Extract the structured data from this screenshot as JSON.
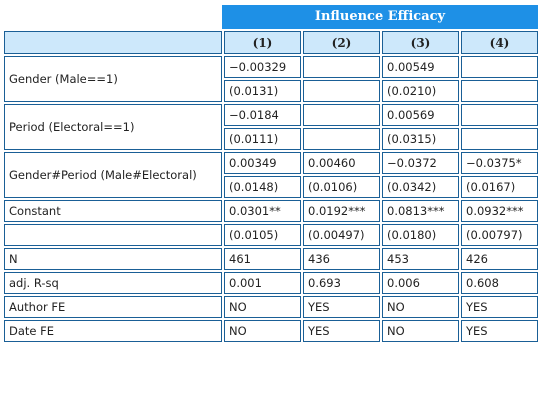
{
  "table": {
    "title": "Influence Efficacy",
    "columns": [
      "(1)",
      "(2)",
      "(3)",
      "(4)"
    ],
    "rows": [
      {
        "label": "Gender (Male==1)",
        "coef": [
          "−0.00329",
          "",
          "0.00549",
          ""
        ],
        "se": [
          "(0.0131)",
          "",
          "(0.0210)",
          ""
        ]
      },
      {
        "label": "Period (Electoral==1)",
        "coef": [
          "−0.0184",
          "",
          "0.00569",
          ""
        ],
        "se": [
          "(0.0111)",
          "",
          "(0.0315)",
          ""
        ]
      },
      {
        "label": "Gender#Period (Male#Electoral)",
        "coef": [
          "0.00349",
          "0.00460",
          "−0.0372",
          "−0.0375*"
        ],
        "se": [
          "(0.0148)",
          "(0.0106)",
          "(0.0342)",
          "(0.0167)"
        ]
      },
      {
        "label": "Constant",
        "coef": [
          "0.0301**",
          "0.0192***",
          "0.0813***",
          "0.0932***"
        ],
        "se": [
          "(0.0105)",
          "(0.00497)",
          "(0.0180)",
          "(0.00797)"
        ]
      }
    ],
    "stats": [
      {
        "label": "N",
        "values": [
          "461",
          "436",
          "453",
          "426"
        ]
      },
      {
        "label": "adj. R-sq",
        "values": [
          "0.001",
          "0.693",
          "0.006",
          "0.608"
        ]
      },
      {
        "label": "Author FE",
        "values": [
          "NO",
          "YES",
          "NO",
          "YES"
        ]
      },
      {
        "label": "Date FE",
        "values": [
          "NO",
          "YES",
          "NO",
          "YES"
        ]
      }
    ]
  },
  "colors": {
    "title_bg": "#1e90e6",
    "header_bg": "#cde8fb",
    "border": "#1a5f96"
  }
}
